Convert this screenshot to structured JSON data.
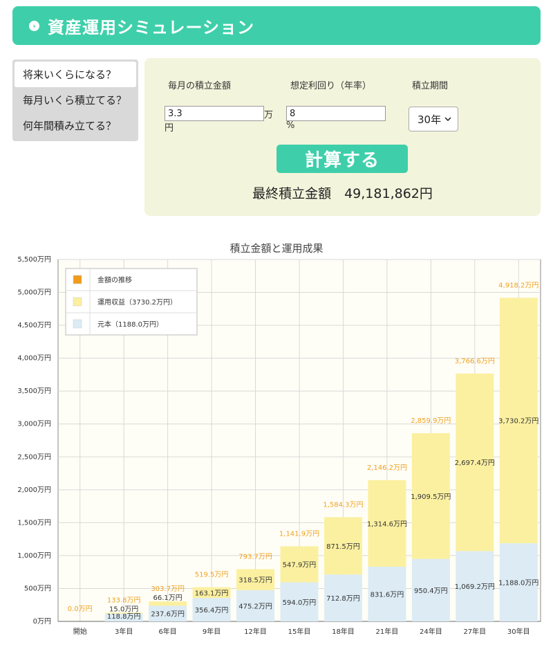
{
  "header": {
    "title": "資産運用シミュレーション",
    "icon": "chevron-right-circle-icon"
  },
  "tabs": [
    {
      "label": "将来いくらになる？",
      "active": true
    },
    {
      "label": "毎月いくら積立てる？",
      "active": false
    },
    {
      "label": "何年間積み立てる？",
      "active": false
    }
  ],
  "form": {
    "monthly_label": "毎月の積立金額",
    "monthly_value": "3.3",
    "monthly_unit_a": "万",
    "monthly_unit_b": "円",
    "rate_label": "想定利回り（年率）",
    "rate_value": "8",
    "rate_unit": "%",
    "period_label": "積立期間",
    "period_value": "30年",
    "calc_button": "計算する",
    "result_text": "最終積立金額　49,181,862円"
  },
  "chart_data": {
    "type": "bar",
    "title": "積立金額と運用成果",
    "categories": [
      "開始",
      "3年目",
      "6年目",
      "9年目",
      "12年目",
      "15年目",
      "18年目",
      "21年目",
      "24年目",
      "27年目",
      "30年目"
    ],
    "series": [
      {
        "name": "元本（1188.0万円）",
        "color": "#dcebf4",
        "values": [
          0,
          118.8,
          237.6,
          356.4,
          475.2,
          594.0,
          712.8,
          831.6,
          950.4,
          1069.2,
          1188.0
        ],
        "labels": [
          "",
          "118.8万円",
          "237.6万円",
          "356.4万円",
          "475.2万円",
          "594.0万円",
          "712.8万円",
          "831.6万円",
          "950.4万円",
          "1,069.2万円",
          "1,188.0万円"
        ]
      },
      {
        "name": "運用収益（3730.2万円）",
        "color": "#fbf0a0",
        "values": [
          0,
          15.0,
          66.1,
          163.1,
          318.5,
          547.9,
          871.5,
          1314.6,
          1909.5,
          2697.4,
          3730.2
        ],
        "labels": [
          "",
          "15.0万円",
          "66.1万円",
          "163.1万円",
          "318.5万円",
          "547.9万円",
          "871.5万円",
          "1,314.6万円",
          "1,909.5万円",
          "2,697.4万円",
          "3,730.2万円"
        ]
      }
    ],
    "totals": [
      0,
      133.8,
      303.7,
      519.5,
      793.7,
      1141.9,
      1584.3,
      2146.2,
      2859.9,
      3766.6,
      4918.2
    ],
    "total_labels": [
      "0.0万円",
      "133.8万円",
      "303.7万円",
      "519.5万円",
      "793.7万円",
      "1,141.9万円",
      "1,584.3万円",
      "2,146.2万円",
      "2,859.9万円",
      "3,766.6万円",
      "4,918.2万円"
    ],
    "total_series": {
      "name": "金額の推移",
      "color": "#f29a1a"
    },
    "yticks": [
      0,
      500,
      1000,
      1500,
      2000,
      2500,
      3000,
      3500,
      4000,
      4500,
      5000,
      5500
    ],
    "ytick_labels": [
      "0万円",
      "500万円",
      "1,000万円",
      "1,500万円",
      "2,000万円",
      "2,500万円",
      "3,000万円",
      "3,500万円",
      "4,000万円",
      "4,500万円",
      "5,000万円",
      "5,500万円"
    ],
    "ylim": [
      0,
      5500
    ],
    "grid": true,
    "legend_position": "top-left"
  }
}
